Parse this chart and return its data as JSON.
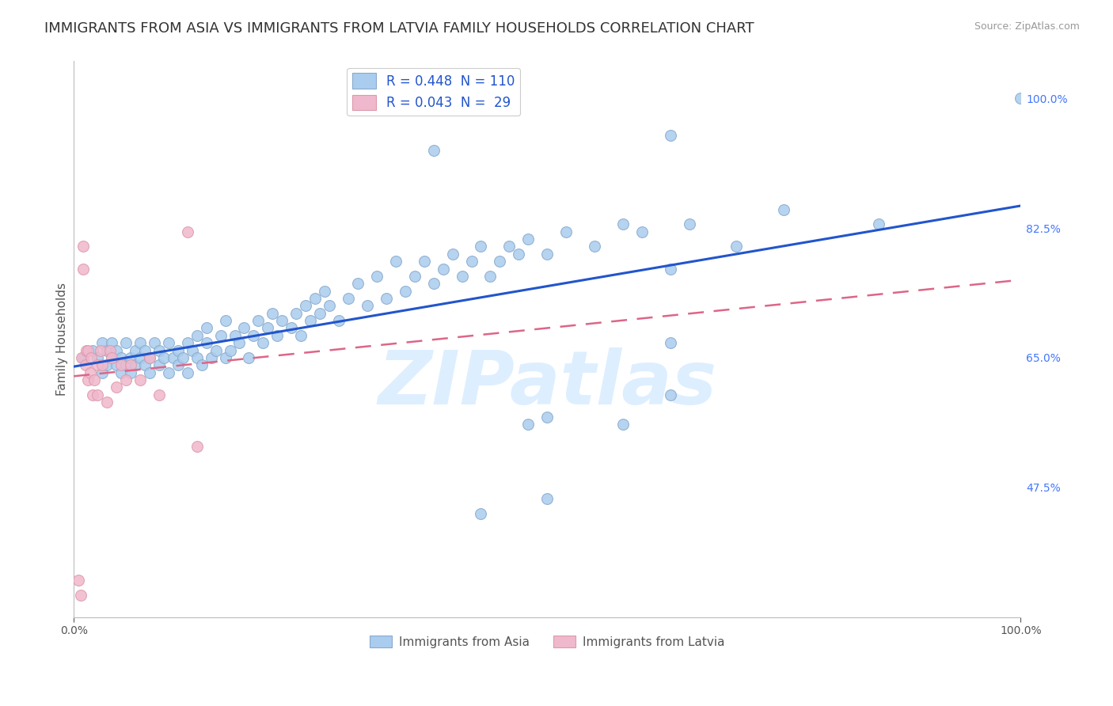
{
  "title": "IMMIGRANTS FROM ASIA VS IMMIGRANTS FROM LATVIA FAMILY HOUSEHOLDS CORRELATION CHART",
  "source": "Source: ZipAtlas.com",
  "ylabel": "Family Households",
  "legend_label1": "Immigrants from Asia",
  "legend_label2": "Immigrants from Latvia",
  "r_asia": 0.448,
  "n_asia": 110,
  "r_latvia": 0.043,
  "n_latvia": 29,
  "trend_asia_color": "#2255cc",
  "trend_latvia_color": "#dd6688",
  "dot_asia_color": "#aaccee",
  "dot_asia_edge": "#88aacc",
  "dot_latvia_color": "#f0b8cc",
  "dot_latvia_edge": "#dd99aa",
  "background_color": "#ffffff",
  "grid_color": "#dddddd",
  "watermark": "ZIPatlas",
  "watermark_color": "#ddeeff",
  "title_fontsize": 13,
  "axis_label_fontsize": 11,
  "tick_fontsize": 10,
  "dot_size": 100,
  "xlim": [
    0.0,
    1.0
  ],
  "ylim": [
    0.3,
    1.05
  ],
  "ytick_vals": [
    0.475,
    0.65,
    0.825,
    1.0
  ],
  "ytick_labels": [
    "47.5%",
    "65.0%",
    "82.5%",
    "100.0%"
  ],
  "asia_x": [
    0.01,
    0.02,
    0.025,
    0.03,
    0.03,
    0.035,
    0.035,
    0.04,
    0.04,
    0.045,
    0.045,
    0.05,
    0.05,
    0.055,
    0.055,
    0.06,
    0.06,
    0.065,
    0.065,
    0.07,
    0.07,
    0.075,
    0.075,
    0.08,
    0.08,
    0.085,
    0.09,
    0.09,
    0.095,
    0.1,
    0.1,
    0.105,
    0.11,
    0.11,
    0.115,
    0.12,
    0.12,
    0.125,
    0.13,
    0.13,
    0.135,
    0.14,
    0.14,
    0.145,
    0.15,
    0.155,
    0.16,
    0.16,
    0.165,
    0.17,
    0.175,
    0.18,
    0.185,
    0.19,
    0.195,
    0.2,
    0.205,
    0.21,
    0.215,
    0.22,
    0.23,
    0.235,
    0.24,
    0.245,
    0.25,
    0.255,
    0.26,
    0.265,
    0.27,
    0.28,
    0.29,
    0.3,
    0.31,
    0.32,
    0.33,
    0.34,
    0.35,
    0.36,
    0.37,
    0.38,
    0.39,
    0.4,
    0.41,
    0.42,
    0.43,
    0.44,
    0.45,
    0.46,
    0.47,
    0.48,
    0.5,
    0.52,
    0.55,
    0.58,
    0.6,
    0.63,
    0.65,
    0.7,
    0.75,
    0.85,
    0.38,
    0.5,
    0.63,
    0.63,
    1.0,
    0.48,
    0.63,
    0.43,
    0.5,
    0.58
  ],
  "asia_y": [
    0.65,
    0.66,
    0.65,
    0.67,
    0.63,
    0.66,
    0.64,
    0.65,
    0.67,
    0.64,
    0.66,
    0.63,
    0.65,
    0.64,
    0.67,
    0.65,
    0.63,
    0.66,
    0.64,
    0.65,
    0.67,
    0.64,
    0.66,
    0.63,
    0.65,
    0.67,
    0.64,
    0.66,
    0.65,
    0.63,
    0.67,
    0.65,
    0.64,
    0.66,
    0.65,
    0.67,
    0.63,
    0.66,
    0.65,
    0.68,
    0.64,
    0.67,
    0.69,
    0.65,
    0.66,
    0.68,
    0.65,
    0.7,
    0.66,
    0.68,
    0.67,
    0.69,
    0.65,
    0.68,
    0.7,
    0.67,
    0.69,
    0.71,
    0.68,
    0.7,
    0.69,
    0.71,
    0.68,
    0.72,
    0.7,
    0.73,
    0.71,
    0.74,
    0.72,
    0.7,
    0.73,
    0.75,
    0.72,
    0.76,
    0.73,
    0.78,
    0.74,
    0.76,
    0.78,
    0.75,
    0.77,
    0.79,
    0.76,
    0.78,
    0.8,
    0.76,
    0.78,
    0.8,
    0.79,
    0.81,
    0.79,
    0.82,
    0.8,
    0.83,
    0.82,
    0.77,
    0.83,
    0.8,
    0.85,
    0.83,
    0.93,
    0.57,
    0.95,
    0.67,
    1.0,
    0.56,
    0.6,
    0.44,
    0.46,
    0.56
  ],
  "latvia_x": [
    0.005,
    0.007,
    0.008,
    0.01,
    0.01,
    0.012,
    0.013,
    0.015,
    0.015,
    0.017,
    0.018,
    0.02,
    0.022,
    0.025,
    0.025,
    0.028,
    0.03,
    0.035,
    0.038,
    0.04,
    0.045,
    0.05,
    0.055,
    0.06,
    0.07,
    0.08,
    0.09,
    0.12,
    0.13
  ],
  "latvia_y": [
    0.35,
    0.33,
    0.65,
    0.8,
    0.77,
    0.64,
    0.66,
    0.62,
    0.66,
    0.63,
    0.65,
    0.6,
    0.62,
    0.64,
    0.6,
    0.66,
    0.64,
    0.59,
    0.66,
    0.65,
    0.61,
    0.64,
    0.62,
    0.64,
    0.62,
    0.65,
    0.6,
    0.82,
    0.53
  ],
  "trend_asia_x0": 0.0,
  "trend_asia_y0": 0.638,
  "trend_asia_x1": 1.0,
  "trend_asia_y1": 0.855,
  "trend_latvia_x0": 0.0,
  "trend_latvia_y0": 0.625,
  "trend_latvia_x1": 1.0,
  "trend_latvia_y1": 0.755
}
